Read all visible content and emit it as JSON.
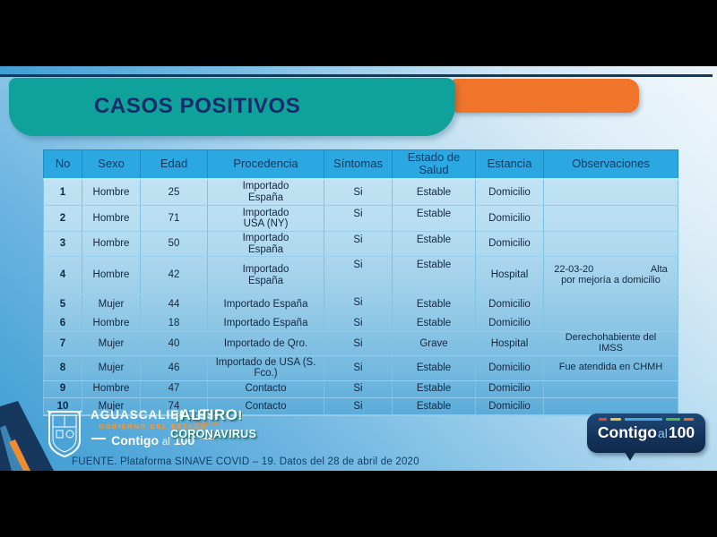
{
  "slide": {
    "title": "CASOS POSITIVOS",
    "footer": "FUENTE. Plataforma SINAVE COVID – 19. Datos del 28 de abril de 2020"
  },
  "table": {
    "col_keys": [
      "no",
      "sexo",
      "edad",
      "procedencia",
      "sintomas",
      "estado-de-salud",
      "estancia",
      "observaciones"
    ],
    "headers": [
      "No",
      "Sexo",
      "Edad",
      "Procedencia",
      "Síntomas",
      "Estado de\nSalud",
      "Estancia",
      "Observaciones"
    ],
    "rows": [
      [
        "1",
        "Hombre",
        "25",
        "Importado\nEspaña",
        "Si",
        "Estable",
        "Domicilio",
        ""
      ],
      [
        "2",
        "Hombre",
        "71",
        "Importado\nUSA (NY)",
        "Si",
        "Estable",
        "Domicilio",
        ""
      ],
      [
        "3",
        "Hombre",
        "50",
        "Importado\nEspaña",
        "Si",
        "Estable",
        "Domicilio",
        ""
      ],
      [
        "4",
        "Hombre",
        "42",
        "Importado\nEspaña",
        "Si",
        "Estable",
        "Hospital",
        "22-03-20                     Alta\npor mejoría a domicilio"
      ],
      [
        "5",
        "Mujer",
        "44",
        "Importado España",
        "Si",
        "Estable",
        "Domicilio",
        ""
      ],
      [
        "6",
        "Hombre",
        "18",
        "Importado España",
        "Si",
        "Estable",
        "Domicilio",
        ""
      ],
      [
        "7",
        "Mujer",
        "40",
        "Importado de Qro.",
        "Si",
        "Grave",
        "Hospital",
        "Derechohabiente del\nIMSS"
      ],
      [
        "8",
        "Mujer",
        "46",
        "Importado de USA (S.\nFco.)",
        "Si",
        "Estable",
        "Domicilio",
        "Fue atendida en CHMH"
      ],
      [
        "9",
        "Hombre",
        "47",
        "Contacto",
        "Si",
        "Estable",
        "Domicilio",
        ""
      ],
      [
        "10",
        "Mujer",
        "74",
        "Contacto",
        "Si",
        "Estable",
        "Domicilio",
        ""
      ]
    ]
  },
  "logos": {
    "gobierno": {
      "name": "AGUASCALIENTES",
      "sub": "GOBIERNO DEL ESTADO",
      "contigo": "Contigo",
      "al": "al",
      "num": "100"
    },
    "altiro": {
      "mark_left": "¡",
      "top": "ALTIRO",
      "mid": "CON EL",
      "bottom": "CORONAVIRUS",
      "mark_right": "!"
    },
    "badge": {
      "contigo": "Contigo",
      "al": "al",
      "num": "100"
    }
  },
  "colors": {
    "header_blue": "#2ba7e1",
    "banner_teal": "#0fa29a",
    "banner_orange": "#f0752b",
    "navy": "#113a5c",
    "title_text": "#1b2a6d",
    "badge_navy": "#14325a",
    "background_light": "#f2f8fb",
    "background_deep": "#3c9cd3"
  }
}
